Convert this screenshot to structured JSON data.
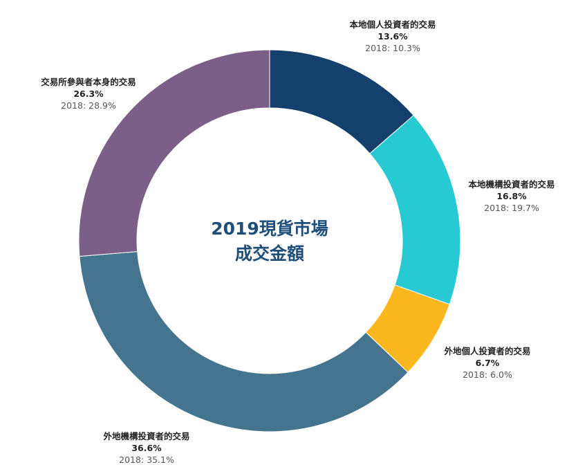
{
  "center_title": {
    "line1": "2019現貨市場",
    "line2": "成交金額"
  },
  "chart_data": {
    "type": "pie",
    "subtype": "donut",
    "start_angle_deg": 0,
    "direction": "clockwise",
    "segments": [
      {
        "label": "本地個人投資者的交易",
        "value": 13.6,
        "value_text": "13.6%",
        "prev_text": "2018: 10.3%",
        "color": "#15406b"
      },
      {
        "label": "本地機構投資者的交易",
        "value": 16.8,
        "value_text": "16.8%",
        "prev_text": "2018: 19.7%",
        "color": "#27c9d3"
      },
      {
        "label": "外地個人投資者的交易",
        "value": 6.7,
        "value_text": "6.7%",
        "prev_text": "2018: 6.0%",
        "color": "#fbb71e"
      },
      {
        "label": "外地機構投資者的交易",
        "value": 36.6,
        "value_text": "36.6%",
        "prev_text": "2018: 35.1%",
        "color": "#44748e"
      },
      {
        "label": "交易所參與者本身的交易",
        "value": 26.3,
        "value_text": "26.3%",
        "prev_text": "2018: 28.9%",
        "color": "#7b5f88"
      }
    ]
  }
}
